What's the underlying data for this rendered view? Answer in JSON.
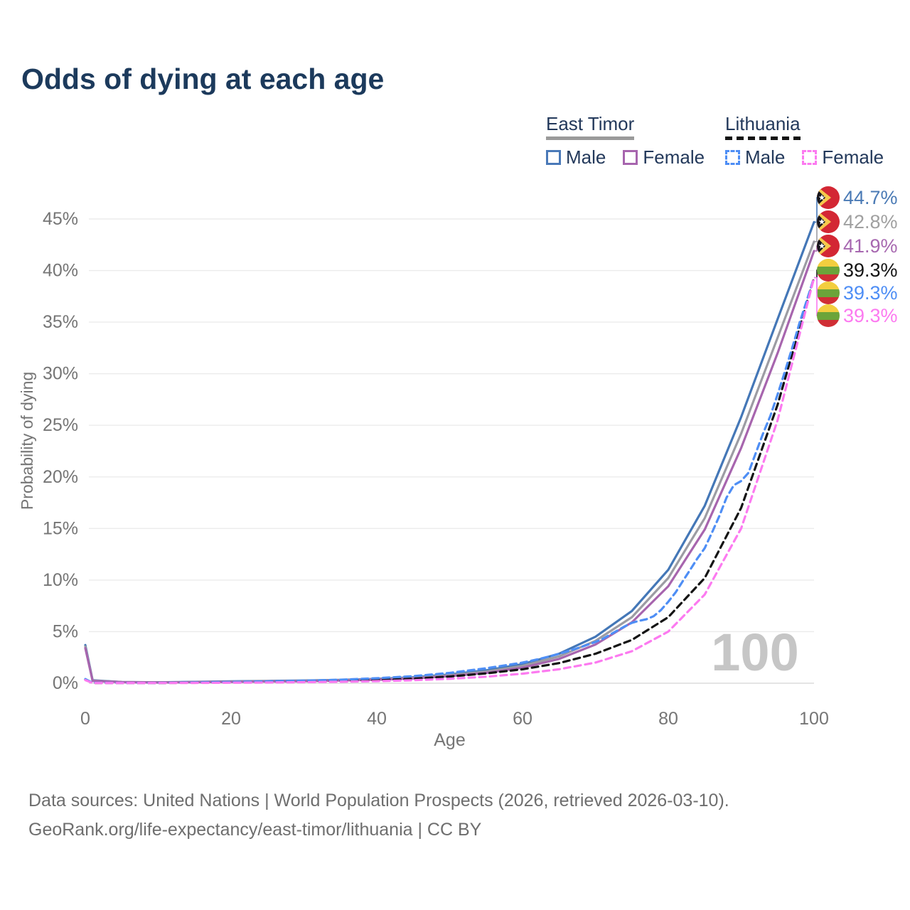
{
  "page": {
    "title": "Odds of dying at each age"
  },
  "legend": {
    "groups": [
      {
        "label": "East Timor",
        "underline_style": "solid",
        "underline_color": "#9a9a9a",
        "items": [
          {
            "label": "Male",
            "color": "#4a79b8",
            "dashed": false
          },
          {
            "label": "Female",
            "color": "#a765ae",
            "dashed": false
          }
        ]
      },
      {
        "label": "Lithuania",
        "underline_style": "dashed",
        "underline_color": "#141414",
        "items": [
          {
            "label": "Male",
            "color": "#4e8ef5",
            "dashed": true
          },
          {
            "label": "Female",
            "color": "#fc7af0",
            "dashed": true
          }
        ]
      }
    ]
  },
  "footer": {
    "line1": "Data sources: United Nations | World Population Prospects (2026, retrieved 2026-03-10).",
    "line2": "GeoRank.org/life-expectancy/east-timor/lithuania | CC BY"
  },
  "chart_data": {
    "type": "line",
    "title": "Odds of dying at each age",
    "xlabel": "Age",
    "ylabel": "Probability of dying",
    "xlim": [
      0,
      100
    ],
    "ylim": [
      0,
      45
    ],
    "x_ticks": [
      0,
      20,
      40,
      60,
      80,
      100
    ],
    "y_ticks": [
      0,
      5,
      10,
      15,
      20,
      25,
      30,
      35,
      40,
      45
    ],
    "y_tick_suffix": "%",
    "grid": "horizontal",
    "watermark": "100",
    "watermark_color": "#c6c6c6",
    "axis_text_color": "#757575",
    "grid_color": "#ebebeb",
    "series": [
      {
        "name": "East Timor Male",
        "color": "#4477b7",
        "dashed": false,
        "x": [
          0,
          1,
          5,
          10,
          15,
          20,
          25,
          30,
          35,
          40,
          45,
          50,
          55,
          60,
          65,
          70,
          75,
          80,
          85,
          90,
          95,
          100
        ],
        "y": [
          3.7,
          0.28,
          0.12,
          0.09,
          0.13,
          0.18,
          0.22,
          0.26,
          0.32,
          0.42,
          0.58,
          0.85,
          1.25,
          1.85,
          2.85,
          4.5,
          7.0,
          11.0,
          17.2,
          25.8,
          35.3,
          44.7
        ]
      },
      {
        "name": "East Timor Both sexes",
        "color": "#9c9ca3",
        "dashed": false,
        "x": [
          0,
          1,
          5,
          10,
          15,
          20,
          25,
          30,
          35,
          40,
          45,
          50,
          55,
          60,
          65,
          70,
          75,
          80,
          85,
          90,
          95,
          100
        ],
        "y": [
          3.55,
          0.25,
          0.11,
          0.08,
          0.11,
          0.16,
          0.2,
          0.23,
          0.29,
          0.38,
          0.52,
          0.77,
          1.12,
          1.68,
          2.6,
          4.1,
          6.4,
          10.2,
          16.0,
          24.2,
          33.5,
          42.8
        ]
      },
      {
        "name": "East Timor Female",
        "color": "#a765ae",
        "dashed": false,
        "x": [
          0,
          1,
          5,
          10,
          15,
          20,
          25,
          30,
          35,
          40,
          45,
          50,
          55,
          60,
          65,
          70,
          75,
          80,
          85,
          90,
          95,
          100
        ],
        "y": [
          3.4,
          0.22,
          0.1,
          0.07,
          0.1,
          0.13,
          0.17,
          0.2,
          0.26,
          0.34,
          0.46,
          0.68,
          1.0,
          1.5,
          2.35,
          3.75,
          5.9,
          9.4,
          14.9,
          22.8,
          32.0,
          41.9
        ]
      },
      {
        "name": "Lithuania Both sexes",
        "color": "#141414",
        "dashed": true,
        "x": [
          0,
          1,
          5,
          10,
          15,
          20,
          25,
          30,
          35,
          40,
          45,
          50,
          55,
          60,
          65,
          70,
          75,
          80,
          85,
          90,
          95,
          100
        ],
        "y": [
          0.35,
          0.03,
          0.02,
          0.02,
          0.05,
          0.08,
          0.11,
          0.15,
          0.21,
          0.3,
          0.44,
          0.65,
          0.95,
          1.35,
          1.95,
          2.85,
          4.2,
          6.4,
          10.2,
          17.0,
          27.0,
          39.3
        ]
      },
      {
        "name": "Lithuania Male",
        "color": "#4e8ef5",
        "dashed": true,
        "x": [
          0,
          1,
          5,
          10,
          15,
          20,
          25,
          30,
          35,
          40,
          45,
          50,
          55,
          60,
          62,
          64,
          66,
          68,
          70,
          71,
          72,
          73,
          74,
          75,
          76,
          77,
          78,
          79,
          80,
          81,
          82,
          83,
          84,
          85,
          86,
          87,
          88,
          89,
          90,
          91,
          92,
          93,
          94,
          95,
          96,
          97,
          98,
          99,
          100
        ],
        "y": [
          0.4,
          0.04,
          0.03,
          0.03,
          0.07,
          0.12,
          0.17,
          0.24,
          0.34,
          0.48,
          0.68,
          1.0,
          1.45,
          2.0,
          2.3,
          2.65,
          3.05,
          3.5,
          4.0,
          4.3,
          4.7,
          5.1,
          5.5,
          5.85,
          6.05,
          6.2,
          6.5,
          7.1,
          7.9,
          8.8,
          9.9,
          11.0,
          12.1,
          13.1,
          14.6,
          16.2,
          18.0,
          19.2,
          19.6,
          20.4,
          22.3,
          24.2,
          25.9,
          28.0,
          30.2,
          32.5,
          34.9,
          37.1,
          39.3
        ]
      },
      {
        "name": "Lithuania Female",
        "color": "#fc7af0",
        "dashed": true,
        "x": [
          0,
          1,
          5,
          10,
          15,
          20,
          25,
          30,
          35,
          40,
          45,
          50,
          55,
          60,
          65,
          70,
          75,
          80,
          85,
          90,
          95,
          100
        ],
        "y": [
          0.3,
          0.02,
          0.015,
          0.02,
          0.03,
          0.05,
          0.07,
          0.1,
          0.14,
          0.2,
          0.29,
          0.43,
          0.63,
          0.92,
          1.35,
          2.0,
          3.1,
          5.0,
          8.6,
          15.0,
          25.5,
          39.3
        ]
      }
    ],
    "end_labels": [
      {
        "value": "44.7%",
        "color": "#4a7ab5",
        "flag": "east-timor"
      },
      {
        "value": "42.8%",
        "color": "#a0a0a0",
        "flag": "east-timor"
      },
      {
        "value": "41.9%",
        "color": "#a768b0",
        "flag": "east-timor"
      },
      {
        "value": "39.3%",
        "color": "#141414",
        "flag": "lithuania"
      },
      {
        "value": "39.3%",
        "color": "#4e8ef5",
        "flag": "lithuania"
      },
      {
        "value": "39.3%",
        "color": "#fc7af0",
        "flag": "lithuania"
      }
    ],
    "flag_colors": {
      "east_timor": {
        "field": "#d32734",
        "triangle_yellow": "#f6c94c",
        "triangle_black": "#15141c",
        "star": "#ffffff"
      },
      "lithuania": {
        "yellow": "#f3ce3f",
        "green": "#6ba43a",
        "red": "#d02e35"
      }
    }
  }
}
